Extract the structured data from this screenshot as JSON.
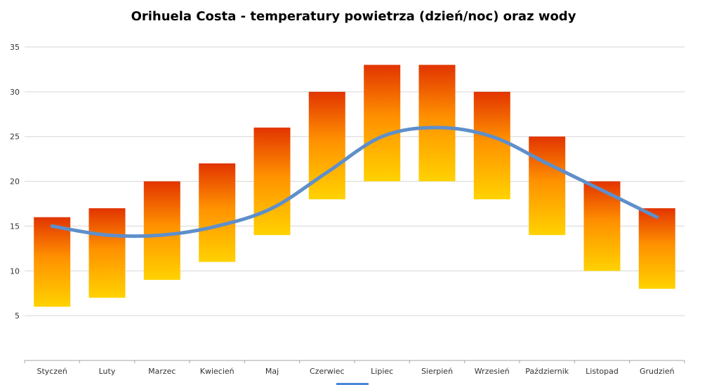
{
  "chart_data": {
    "type": "bar",
    "title": "Orihuela Costa - temperatury powietrza (dzień/noc) oraz wody",
    "categories": [
      "Styczeń",
      "Luty",
      "Marzec",
      "Kwiecień",
      "Maj",
      "Czerwiec",
      "Lipiec",
      "Sierpień",
      "Wrzesień",
      "Październik",
      "Listopad",
      "Grudzień"
    ],
    "series": [
      {
        "name": "air_temp_night_bar_low",
        "values": [
          6,
          7,
          9,
          11,
          14,
          18,
          20,
          20,
          18,
          14,
          10,
          8
        ]
      },
      {
        "name": "air_temp_day_bar_high",
        "values": [
          16,
          17,
          20,
          22,
          26,
          30,
          33,
          33,
          30,
          25,
          20,
          17
        ]
      },
      {
        "name": "water_temp_line",
        "values": [
          15,
          14,
          14,
          15,
          17,
          21,
          25,
          26,
          25,
          22,
          19,
          16
        ]
      }
    ],
    "ylim": [
      0,
      35
    ],
    "yticks": [
      5,
      10,
      15,
      20,
      25,
      30,
      35
    ],
    "grid": true,
    "legend": "none",
    "colors": {
      "bar_top": "#e23400",
      "bar_mid": "#ff9100",
      "bar_bottom": "#ffd200",
      "line": "#5e8fcb",
      "gridline": "#d6d6d6",
      "axis": "#a6a6a6",
      "text": "#333333",
      "title": "#000000",
      "artifact": "#4a86d8"
    }
  }
}
